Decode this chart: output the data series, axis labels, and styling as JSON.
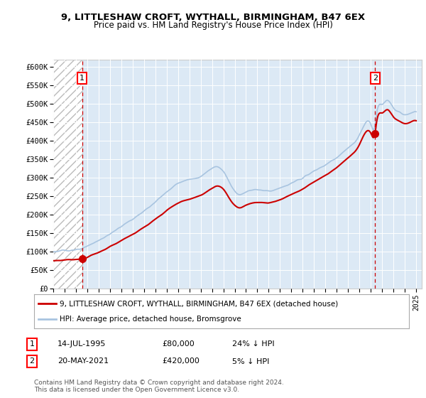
{
  "title": "9, LITTLESHAW CROFT, WYTHALL, BIRMINGHAM, B47 6EX",
  "subtitle": "Price paid vs. HM Land Registry's House Price Index (HPI)",
  "ylim": [
    0,
    620000
  ],
  "yticks": [
    0,
    50000,
    100000,
    150000,
    200000,
    250000,
    300000,
    350000,
    400000,
    450000,
    500000,
    550000,
    600000
  ],
  "ytick_labels": [
    "£0",
    "£50K",
    "£100K",
    "£150K",
    "£200K",
    "£250K",
    "£300K",
    "£350K",
    "£400K",
    "£450K",
    "£500K",
    "£550K",
    "£600K"
  ],
  "xlim_start": 1993.0,
  "xlim_end": 2025.5,
  "hpi_color": "#a8c4e0",
  "price_color": "#cc0000",
  "dashed_color": "#cc0000",
  "plot_bg_color": "#dce9f5",
  "legend_label_red": "9, LITTLESHAW CROFT, WYTHALL, BIRMINGHAM, B47 6EX (detached house)",
  "legend_label_blue": "HPI: Average price, detached house, Bromsgrove",
  "sale1_date": 1995.54,
  "sale1_price": 80000,
  "sale1_label": "1",
  "sale2_date": 2021.38,
  "sale2_price": 420000,
  "sale2_label": "2",
  "footer": "Contains HM Land Registry data © Crown copyright and database right 2024.\nThis data is licensed under the Open Government Licence v3.0.",
  "table_row1": [
    "1",
    "14-JUL-1995",
    "£80,000",
    "24% ↓ HPI"
  ],
  "table_row2": [
    "2",
    "20-MAY-2021",
    "£420,000",
    "5% ↓ HPI"
  ]
}
